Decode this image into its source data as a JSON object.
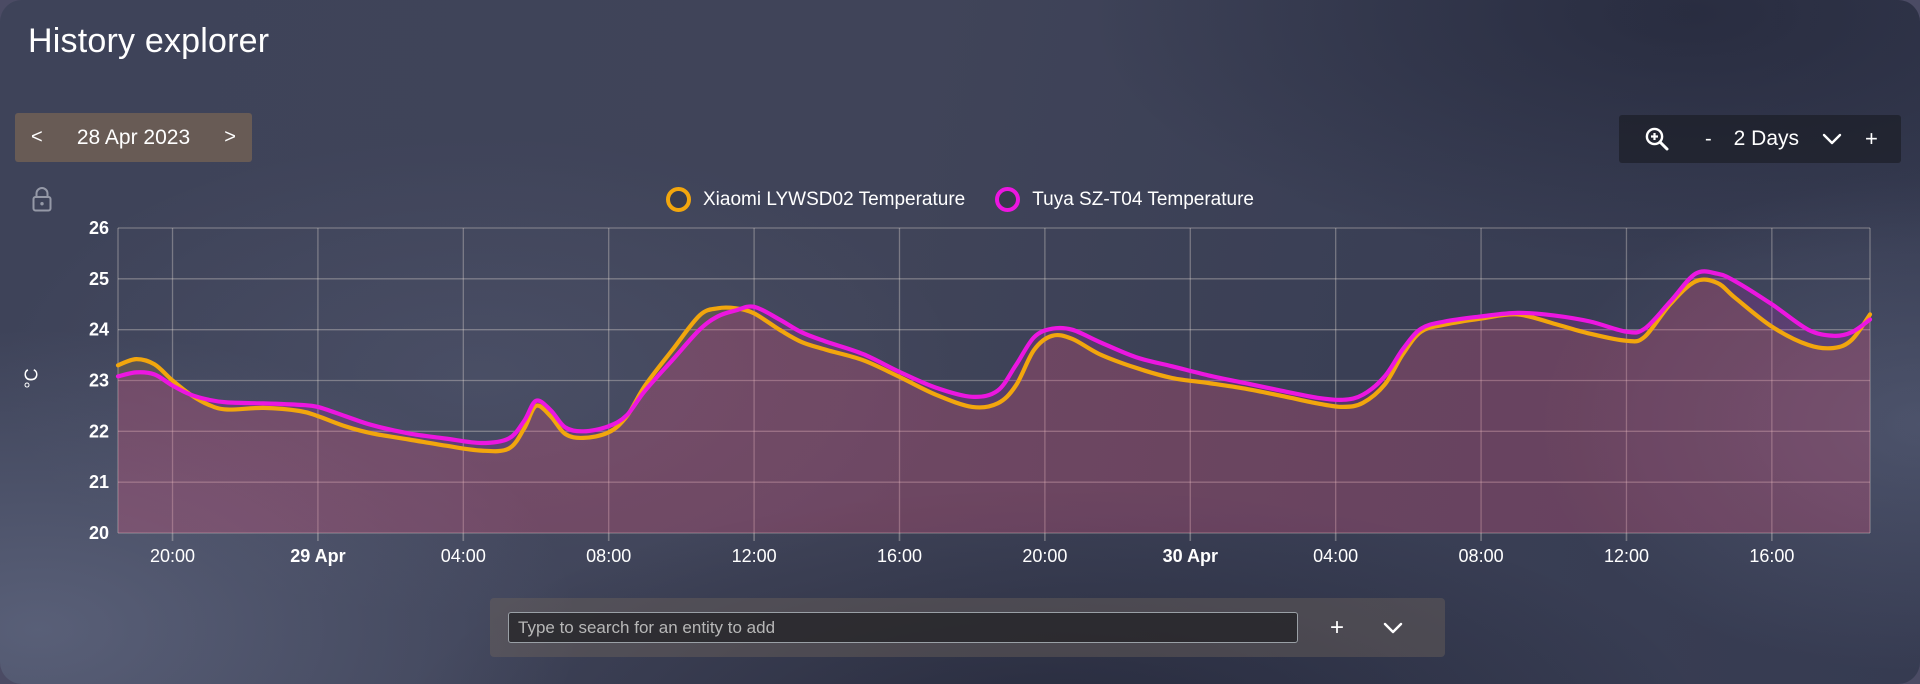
{
  "header": {
    "title": "History explorer"
  },
  "date_nav": {
    "prev": "<",
    "label": "28 Apr 2023",
    "next": ">"
  },
  "zoom_toolbar": {
    "zoom_out": "-",
    "range_label": "2 Days",
    "zoom_in": "+"
  },
  "legend": [
    {
      "label": "Xiaomi LYWSD02 Temperature",
      "color": "#F2A60D"
    },
    {
      "label": "Tuya SZ-T04 Temperature",
      "color": "#EC16E0"
    }
  ],
  "entity_bar": {
    "placeholder": "Type to search for an entity to add",
    "add_label": "+"
  },
  "icons": [
    "zoom-in-magnifier-icon",
    "chevron-down-icon",
    "lock-icon"
  ],
  "colors": {
    "text": "#FFFFFF",
    "grid": "rgba(235,225,218,0.34)",
    "series_orange": "#F2A60D",
    "series_magenta": "#EC16E0",
    "fill_orange": "rgba(242,166,13,0.14)",
    "fill_magenta": "rgba(236,22,224,0.15)"
  },
  "chart_data": {
    "type": "line",
    "title": "",
    "xlabel": "",
    "ylabel": "°C",
    "ylim": [
      20,
      26
    ],
    "yticks": [
      20,
      21,
      22,
      23,
      24,
      25,
      26
    ],
    "grid": true,
    "legend_position": "top",
    "x_unit": "hours since 28 Apr 2023 18:30",
    "x_range_hours": [
      0,
      48.2
    ],
    "x_ticks": [
      {
        "t": 1.5,
        "label": "20:00",
        "bold": false
      },
      {
        "t": 5.5,
        "label": "29 Apr",
        "bold": true
      },
      {
        "t": 9.5,
        "label": "04:00",
        "bold": false
      },
      {
        "t": 13.5,
        "label": "08:00",
        "bold": false
      },
      {
        "t": 17.5,
        "label": "12:00",
        "bold": false
      },
      {
        "t": 21.5,
        "label": "16:00",
        "bold": false
      },
      {
        "t": 25.5,
        "label": "20:00",
        "bold": false
      },
      {
        "t": 29.5,
        "label": "30 Apr",
        "bold": true
      },
      {
        "t": 33.5,
        "label": "04:00",
        "bold": false
      },
      {
        "t": 37.5,
        "label": "08:00",
        "bold": false
      },
      {
        "t": 41.5,
        "label": "12:00",
        "bold": false
      },
      {
        "t": 45.5,
        "label": "16:00",
        "bold": false
      }
    ],
    "series": [
      {
        "name": "Xiaomi LYWSD02 Temperature",
        "color": "#F2A60D",
        "points": [
          [
            0,
            23.3
          ],
          [
            0.5,
            23.42
          ],
          [
            1.0,
            23.32
          ],
          [
            1.5,
            23.0
          ],
          [
            2.0,
            22.72
          ],
          [
            2.5,
            22.52
          ],
          [
            3.0,
            22.43
          ],
          [
            4.0,
            22.46
          ],
          [
            5.0,
            22.4
          ],
          [
            5.5,
            22.3
          ],
          [
            6.25,
            22.1
          ],
          [
            7.0,
            21.96
          ],
          [
            8.0,
            21.84
          ],
          [
            9.0,
            21.72
          ],
          [
            10.0,
            21.62
          ],
          [
            10.75,
            21.66
          ],
          [
            11.17,
            22.05
          ],
          [
            11.5,
            22.5
          ],
          [
            11.9,
            22.3
          ],
          [
            12.3,
            21.95
          ],
          [
            12.8,
            21.87
          ],
          [
            13.5,
            21.98
          ],
          [
            14.0,
            22.3
          ],
          [
            14.5,
            22.9
          ],
          [
            15.25,
            23.6
          ],
          [
            16.0,
            24.28
          ],
          [
            16.5,
            24.42
          ],
          [
            17.0,
            24.42
          ],
          [
            17.5,
            24.32
          ],
          [
            18.2,
            24.0
          ],
          [
            18.8,
            23.76
          ],
          [
            19.5,
            23.6
          ],
          [
            20.5,
            23.4
          ],
          [
            21.5,
            23.07
          ],
          [
            22.5,
            22.72
          ],
          [
            23.5,
            22.48
          ],
          [
            24.2,
            22.55
          ],
          [
            24.7,
            22.9
          ],
          [
            25.2,
            23.6
          ],
          [
            25.7,
            23.88
          ],
          [
            26.25,
            23.82
          ],
          [
            27.0,
            23.52
          ],
          [
            28.0,
            23.25
          ],
          [
            29.0,
            23.05
          ],
          [
            30.0,
            22.95
          ],
          [
            31.0,
            22.84
          ],
          [
            32.0,
            22.7
          ],
          [
            33.0,
            22.55
          ],
          [
            33.7,
            22.48
          ],
          [
            34.25,
            22.56
          ],
          [
            34.85,
            22.92
          ],
          [
            35.35,
            23.52
          ],
          [
            35.85,
            23.96
          ],
          [
            36.5,
            24.1
          ],
          [
            37.5,
            24.22
          ],
          [
            38.5,
            24.3
          ],
          [
            39.5,
            24.12
          ],
          [
            40.5,
            23.92
          ],
          [
            41.5,
            23.78
          ],
          [
            42.0,
            23.86
          ],
          [
            42.7,
            24.5
          ],
          [
            43.4,
            24.95
          ],
          [
            44.0,
            24.92
          ],
          [
            44.5,
            24.62
          ],
          [
            45.5,
            24.06
          ],
          [
            46.5,
            23.7
          ],
          [
            47.2,
            23.64
          ],
          [
            47.7,
            23.8
          ],
          [
            48.2,
            24.3
          ]
        ]
      },
      {
        "name": "Tuya SZ-T04 Temperature",
        "color": "#EC16E0",
        "points": [
          [
            0,
            23.08
          ],
          [
            0.5,
            23.16
          ],
          [
            1.0,
            23.12
          ],
          [
            1.5,
            22.9
          ],
          [
            2.0,
            22.72
          ],
          [
            2.5,
            22.62
          ],
          [
            3.0,
            22.57
          ],
          [
            4.0,
            22.55
          ],
          [
            5.0,
            22.52
          ],
          [
            5.5,
            22.48
          ],
          [
            6.25,
            22.3
          ],
          [
            7.0,
            22.12
          ],
          [
            8.0,
            21.96
          ],
          [
            9.0,
            21.86
          ],
          [
            10.0,
            21.77
          ],
          [
            10.75,
            21.86
          ],
          [
            11.17,
            22.2
          ],
          [
            11.5,
            22.6
          ],
          [
            11.9,
            22.42
          ],
          [
            12.3,
            22.08
          ],
          [
            12.8,
            22.0
          ],
          [
            13.5,
            22.1
          ],
          [
            14.0,
            22.32
          ],
          [
            14.5,
            22.8
          ],
          [
            15.25,
            23.4
          ],
          [
            16.0,
            24.0
          ],
          [
            16.5,
            24.26
          ],
          [
            17.0,
            24.38
          ],
          [
            17.5,
            24.45
          ],
          [
            18.2,
            24.2
          ],
          [
            18.8,
            23.95
          ],
          [
            19.5,
            23.76
          ],
          [
            20.5,
            23.52
          ],
          [
            21.5,
            23.17
          ],
          [
            22.5,
            22.86
          ],
          [
            23.5,
            22.68
          ],
          [
            24.2,
            22.8
          ],
          [
            24.7,
            23.3
          ],
          [
            25.2,
            23.85
          ],
          [
            25.7,
            24.02
          ],
          [
            26.25,
            24.0
          ],
          [
            27.0,
            23.76
          ],
          [
            28.0,
            23.46
          ],
          [
            29.0,
            23.28
          ],
          [
            30.0,
            23.1
          ],
          [
            31.0,
            22.95
          ],
          [
            32.0,
            22.8
          ],
          [
            33.0,
            22.66
          ],
          [
            33.7,
            22.62
          ],
          [
            34.25,
            22.72
          ],
          [
            34.85,
            23.08
          ],
          [
            35.35,
            23.62
          ],
          [
            35.85,
            24.02
          ],
          [
            36.5,
            24.16
          ],
          [
            37.5,
            24.26
          ],
          [
            38.5,
            24.33
          ],
          [
            39.5,
            24.28
          ],
          [
            40.5,
            24.16
          ],
          [
            41.5,
            23.96
          ],
          [
            42.0,
            24.02
          ],
          [
            42.7,
            24.55
          ],
          [
            43.4,
            25.1
          ],
          [
            44.0,
            25.1
          ],
          [
            44.5,
            24.95
          ],
          [
            45.5,
            24.5
          ],
          [
            46.5,
            24.0
          ],
          [
            47.2,
            23.88
          ],
          [
            47.7,
            23.95
          ],
          [
            48.2,
            24.2
          ]
        ]
      }
    ]
  }
}
